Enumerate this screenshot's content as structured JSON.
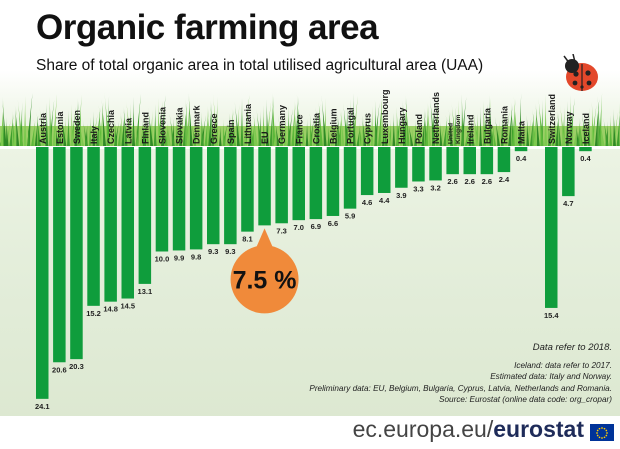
{
  "header": {
    "title": "Organic farming area",
    "subtitle": "Share of total organic area in total utilised agricultural area (UAA)"
  },
  "chart_data": {
    "type": "bar",
    "orientation": "vertical-down",
    "categories": [
      "Austria",
      "Estonia",
      "Sweden",
      "Italy",
      "Czechia",
      "Latvia",
      "Finland",
      "Slovenia",
      "Slovakia",
      "Denmark",
      "Greece",
      "Spain",
      "Lithuania",
      "EU",
      "Germany",
      "France",
      "Croatia",
      "Belgium",
      "Portugal",
      "Cyprus",
      "Luxembourg",
      "Hungary",
      "Poland",
      "Netherlands",
      "United Kingdom",
      "Ireland",
      "Bulgaria",
      "Romania",
      "Malta",
      "Switzerland",
      "Norway",
      "Iceland"
    ],
    "values": [
      24.1,
      20.6,
      20.3,
      15.2,
      14.8,
      14.5,
      13.1,
      10.0,
      9.9,
      9.8,
      9.3,
      9.3,
      8.1,
      7.5,
      7.3,
      7.0,
      6.9,
      6.6,
      5.9,
      4.6,
      4.4,
      3.9,
      3.3,
      3.2,
      2.6,
      2.6,
      2.6,
      2.4,
      0.4,
      15.4,
      4.7,
      0.4
    ],
    "value_labels": [
      "24.1",
      "20.6",
      "20.3",
      "15.2",
      "14.8",
      "14.5",
      "13.1",
      "10.0",
      "9.9",
      "9.8",
      "9.3",
      "9.3",
      "8.1",
      "",
      "7.3",
      "7.0",
      "6.9",
      "6.6",
      "5.9",
      "4.6",
      "4.4",
      "3.9",
      "3.3",
      "3.2",
      "2.6",
      "2.6",
      "2.6",
      "2.4",
      "0.4",
      "15.4",
      "4.7",
      "0.4"
    ],
    "groups": [
      "eu",
      "eu",
      "eu",
      "eu",
      "eu",
      "eu",
      "eu",
      "eu",
      "eu",
      "eu",
      "eu",
      "eu",
      "eu",
      "eu",
      "eu",
      "eu",
      "eu",
      "eu",
      "eu",
      "eu",
      "eu",
      "eu",
      "eu",
      "eu",
      "eu",
      "eu",
      "eu",
      "eu",
      "eu",
      "efta",
      "efta",
      "efta"
    ],
    "highlight": {
      "category": "EU",
      "label": "7.5 %"
    },
    "unit": "%",
    "ylim": [
      0,
      25
    ],
    "colors": {
      "bar": "#0f9d3c",
      "highlight": "#f08a3a",
      "grass": "#46a832"
    }
  },
  "notes": {
    "ref_year": "Data refer to 2018.",
    "iceland": "Iceland: data refer to 2017.",
    "estimated": "Estimated data:  Italy and Norway.",
    "preliminary": "Preliminary data: EU, Belgium, Bulgaria, Cyprus, Latvia, Netherlands and Romania.",
    "source": "Source: Eurostat (online data code: org_cropar)"
  },
  "footer": {
    "domain": "ec.europa.eu/",
    "brand": "eurostat"
  }
}
